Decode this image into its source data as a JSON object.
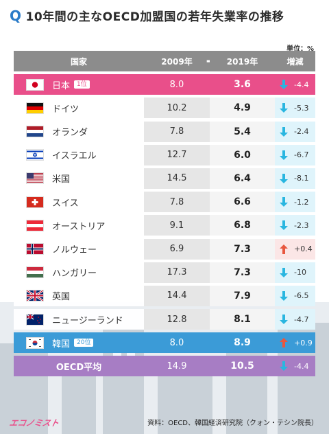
{
  "title": "10年間の主なOECD加盟国の若年失業率の推移",
  "title_marker": "Q",
  "unit": "単位：%",
  "header": {
    "country": "国家",
    "y2009": "2009年",
    "arrow": "➡",
    "y2019": "2019年",
    "change": "増減"
  },
  "rows": [
    {
      "name": "日本",
      "badge": "1位",
      "v2009": "8.0",
      "v2019": "3.6",
      "change": "-4.4",
      "dir": "down",
      "flag": "jp"
    },
    {
      "name": "ドイツ",
      "badge": "",
      "v2009": "10.2",
      "v2019": "4.9",
      "change": "-5.3",
      "dir": "down",
      "flag": "de"
    },
    {
      "name": "オランダ",
      "badge": "",
      "v2009": "7.8",
      "v2019": "5.4",
      "change": "-2.4",
      "dir": "down",
      "flag": "nl"
    },
    {
      "name": "イスラエル",
      "badge": "",
      "v2009": "12.7",
      "v2019": "6.0",
      "change": "-6.7",
      "dir": "down",
      "flag": "il"
    },
    {
      "name": "米国",
      "badge": "",
      "v2009": "14.5",
      "v2019": "6.4",
      "change": "-8.1",
      "dir": "down",
      "flag": "us"
    },
    {
      "name": "スイス",
      "badge": "",
      "v2009": "7.8",
      "v2019": "6.6",
      "change": "-1.2",
      "dir": "down",
      "flag": "ch"
    },
    {
      "name": "オーストリア",
      "badge": "",
      "v2009": "9.1",
      "v2019": "6.8",
      "change": "-2.3",
      "dir": "down",
      "flag": "at"
    },
    {
      "name": "ノルウェー",
      "badge": "",
      "v2009": "6.9",
      "v2019": "7.3",
      "change": "+0.4",
      "dir": "up",
      "flag": "no"
    },
    {
      "name": "ハンガリー",
      "badge": "",
      "v2009": "17.3",
      "v2019": "7.3",
      "change": "-10",
      "dir": "down",
      "flag": "hu"
    },
    {
      "name": "英国",
      "badge": "",
      "v2009": "14.4",
      "v2019": "7.9",
      "change": "-6.5",
      "dir": "down",
      "flag": "gb"
    },
    {
      "name": "ニュージーランド",
      "badge": "",
      "v2009": "12.8",
      "v2019": "8.1",
      "change": "-4.7",
      "dir": "down",
      "flag": "nz"
    },
    {
      "name": "韓国",
      "badge": "20位",
      "v2009": "8.0",
      "v2019": "8.9",
      "change": "+0.9",
      "dir": "up",
      "flag": "kr"
    },
    {
      "name": "OECD平均",
      "badge": "",
      "v2009": "14.9",
      "v2019": "10.5",
      "change": "-4.4",
      "dir": "down",
      "flag": ""
    }
  ],
  "source": "資料：OECD、韓国経済研究院（クォン・テシン院長）",
  "logo": "エコノミスト",
  "colors": {
    "japan": "#e94f8a",
    "korea": "#3b9bd7",
    "oecd": "#a77dc4",
    "down_arrow": "#29b6e0",
    "up_arrow": "#e8573f",
    "header": "#8c8c8c"
  },
  "chart_data": {
    "type": "table",
    "title": "10年間の主なOECD加盟国の若年失業率の推移",
    "columns": [
      "国家",
      "2009年",
      "2019年",
      "増減"
    ],
    "unit": "%",
    "series": [
      {
        "name": "2009年",
        "values": [
          8.0,
          10.2,
          7.8,
          12.7,
          14.5,
          7.8,
          9.1,
          6.9,
          17.3,
          14.4,
          12.8,
          8.0,
          14.9
        ]
      },
      {
        "name": "2019年",
        "values": [
          3.6,
          4.9,
          5.4,
          6.0,
          6.4,
          6.6,
          6.8,
          7.3,
          7.3,
          7.9,
          8.1,
          8.9,
          10.5
        ]
      },
      {
        "name": "増減",
        "values": [
          -4.4,
          -5.3,
          -2.4,
          -6.7,
          -8.1,
          -1.2,
          -2.3,
          0.4,
          -10,
          -6.5,
          -4.7,
          0.9,
          -4.4
        ]
      }
    ],
    "categories": [
      "日本",
      "ドイツ",
      "オランダ",
      "イスラエル",
      "米国",
      "スイス",
      "オーストリア",
      "ノルウェー",
      "ハンガリー",
      "英国",
      "ニュージーランド",
      "韓国",
      "OECD平均"
    ]
  }
}
